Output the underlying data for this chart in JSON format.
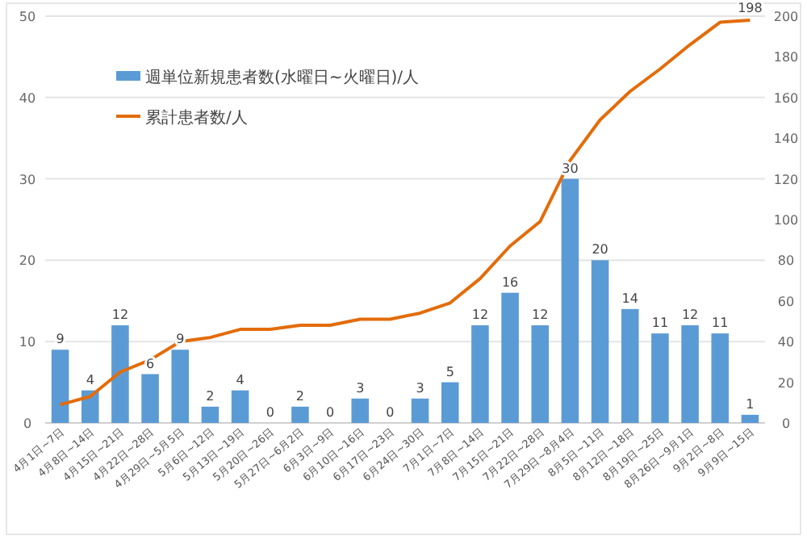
{
  "chart_data": {
    "type": "bar",
    "categories": [
      "4月1日~7日",
      "4月8日~14日",
      "4月15日~21日",
      "4月22日~28日",
      "4月29日~5月5日",
      "5月6日~12日",
      "5月13日~19日",
      "5月20日~26日",
      "5月27日~6月2日",
      "6月3日~9日",
      "6月10日~16日",
      "6月17日~23日",
      "6月24日~30日",
      "7月1日~7日",
      "7月8日~14日",
      "7月15日~21日",
      "7月22日~28日",
      "7月29日~8月4日",
      "8月5日~11日",
      "8月12日~18日",
      "8月19日~25日",
      "8月26日~9月1日",
      "9月2日~8日",
      "9月9日~15日"
    ],
    "series": [
      {
        "name": "週単位新規患者数(水曜日~火曜日)/人",
        "color": "#5b9bd5",
        "values": [
          9,
          4,
          12,
          6,
          9,
          2,
          4,
          0,
          2,
          0,
          3,
          0,
          3,
          5,
          12,
          16,
          12,
          30,
          20,
          14,
          11,
          12,
          11,
          1
        ],
        "value_labels": [
          "9",
          "4",
          "12",
          "6",
          "9",
          "2",
          "4",
          "0",
          "2",
          "0",
          "3",
          "0",
          "3",
          "5",
          "12",
          "16",
          "12",
          "30",
          "20",
          "14",
          "11",
          "12",
          "11",
          "1"
        ]
      },
      {
        "name": "累計患者数/人",
        "type": "line",
        "axis": "y2",
        "color": "#e36c0a",
        "values": [
          9,
          13,
          25,
          31,
          40,
          42,
          46,
          46,
          48,
          48,
          51,
          51,
          54,
          59,
          71,
          87,
          99,
          129,
          149,
          163,
          174,
          186,
          197,
          198
        ],
        "value_labels": [
          null,
          null,
          null,
          null,
          null,
          null,
          null,
          null,
          null,
          null,
          null,
          null,
          null,
          null,
          null,
          null,
          null,
          null,
          null,
          null,
          null,
          null,
          null,
          "198"
        ]
      }
    ],
    "ylim": [
      0,
      50
    ],
    "yticks": [
      0,
      10,
      20,
      30,
      40,
      50
    ],
    "y2lim": [
      0,
      200
    ],
    "y2ticks": [
      0,
      20,
      40,
      60,
      80,
      100,
      120,
      140,
      160,
      180,
      200
    ],
    "grid": "y",
    "legend": "top left",
    "marker": "none",
    "line_style": "solid"
  }
}
